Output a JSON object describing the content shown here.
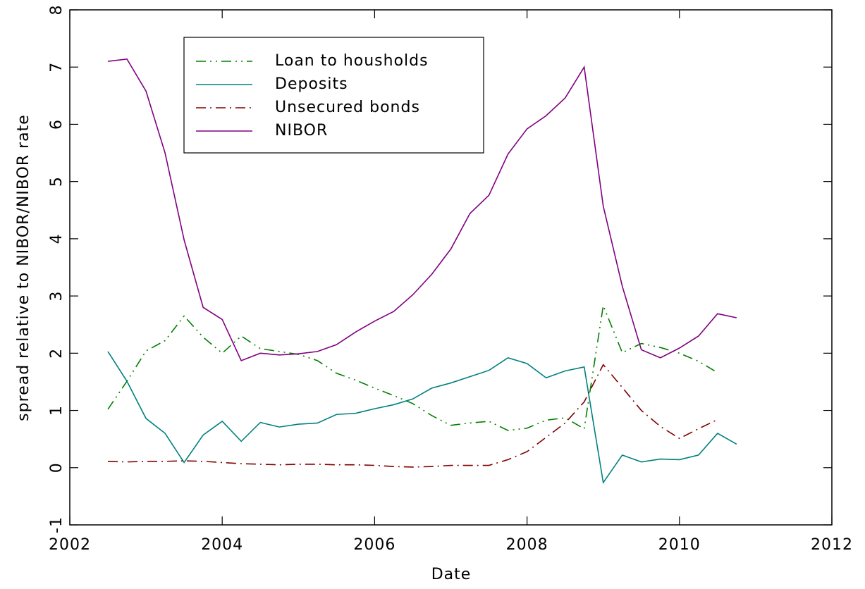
{
  "chart_data": {
    "type": "line",
    "xlabel": "Date",
    "ylabel": "spread relative to NIBOR/NIBOR rate",
    "x": [
      2002.5,
      2002.75,
      2003,
      2003.25,
      2003.5,
      2003.75,
      2004,
      2004.25,
      2004.5,
      2004.75,
      2005,
      2005.25,
      2005.5,
      2005.75,
      2006,
      2006.25,
      2006.5,
      2006.75,
      2007,
      2007.25,
      2007.5,
      2007.75,
      2008,
      2008.25,
      2008.5,
      2008.75,
      2009,
      2009.25,
      2009.5,
      2009.75,
      2010,
      2010.25,
      2010.5,
      2010.75
    ],
    "series": [
      {
        "name": "Loan to housholds",
        "color": "#008000",
        "dash": "14 6 2 6 2 6",
        "values": [
          1.02,
          1.51,
          2.04,
          2.22,
          2.65,
          2.28,
          2.0,
          2.3,
          2.08,
          2.03,
          1.98,
          1.87,
          1.65,
          1.53,
          1.39,
          1.26,
          1.12,
          0.91,
          0.74,
          0.78,
          0.81,
          0.65,
          0.69,
          0.83,
          0.87,
          0.68,
          2.83,
          2.01,
          2.17,
          2.1,
          2.0,
          1.86,
          1.66,
          null
        ]
      },
      {
        "name": "Deposits",
        "color": "#008080",
        "dash": "none",
        "values": [
          2.03,
          1.51,
          0.86,
          0.6,
          0.09,
          0.57,
          0.81,
          0.46,
          0.79,
          0.71,
          0.76,
          0.78,
          0.93,
          0.95,
          1.03,
          1.1,
          1.2,
          1.39,
          1.48,
          1.59,
          1.7,
          1.92,
          1.82,
          1.57,
          1.69,
          1.76,
          -0.26,
          0.22,
          0.1,
          0.15,
          0.14,
          0.22,
          0.6,
          0.41
        ]
      },
      {
        "name": "Unsecured bonds",
        "color": "#800000",
        "dash": "14 6 2 6",
        "values": [
          0.11,
          0.1,
          0.11,
          0.11,
          0.12,
          0.11,
          0.09,
          0.07,
          0.06,
          0.05,
          0.06,
          0.06,
          0.05,
          0.05,
          0.04,
          0.02,
          0.01,
          0.02,
          0.04,
          0.04,
          0.04,
          0.14,
          0.28,
          0.53,
          0.78,
          1.15,
          1.8,
          1.4,
          1.0,
          0.72,
          0.51,
          0.68,
          0.84,
          null
        ]
      },
      {
        "name": "NIBOR",
        "color": "#800080",
        "dash": "none",
        "values": [
          7.1,
          7.14,
          6.58,
          5.5,
          3.98,
          2.8,
          2.59,
          1.87,
          2.0,
          1.97,
          1.99,
          2.03,
          2.15,
          2.37,
          2.56,
          2.73,
          3.02,
          3.38,
          3.82,
          4.44,
          4.76,
          5.48,
          5.92,
          6.15,
          6.46,
          7.0,
          4.57,
          3.17,
          2.06,
          1.92,
          2.09,
          2.3,
          2.69,
          2.62
        ]
      }
    ],
    "xlim": [
      2002,
      2012
    ],
    "xticks": [
      2002,
      2004,
      2006,
      2008,
      2010,
      2012
    ],
    "ylim": [
      -1,
      8
    ],
    "yticks": [
      -1,
      0,
      1,
      2,
      3,
      4,
      5,
      6,
      7,
      8
    ],
    "grid": false,
    "legend": "upper left"
  }
}
